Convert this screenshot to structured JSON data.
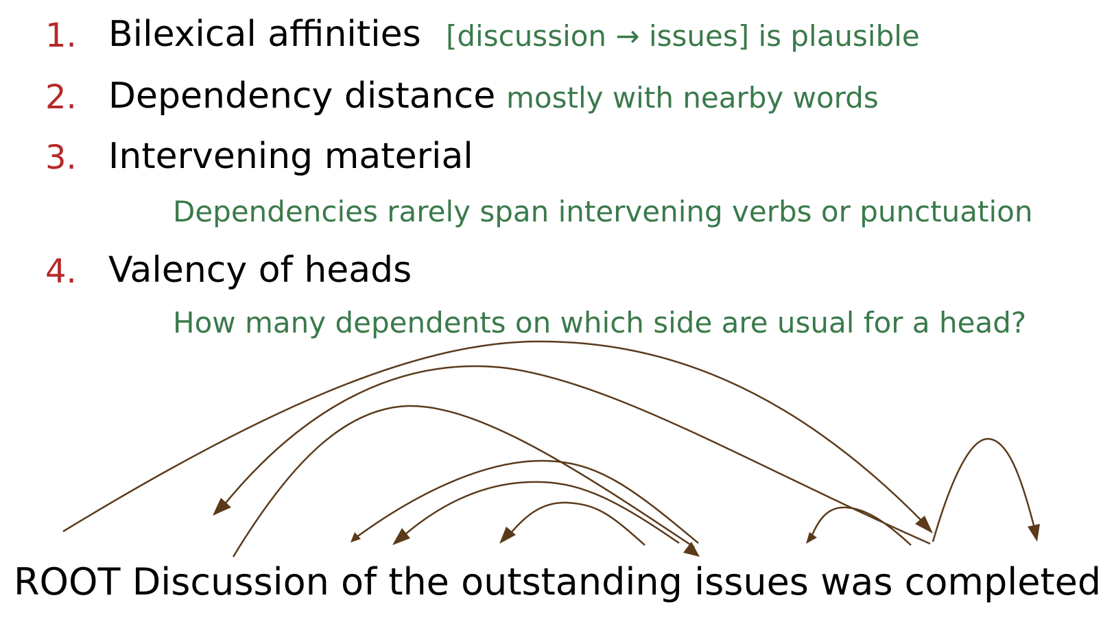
{
  "items": [
    {
      "number": "1.",
      "title": "Bilexical affinities",
      "note": "[discussion → issues] is plausible"
    },
    {
      "number": "2.",
      "title": "Dependency distance",
      "note": "mostly with nearby words"
    },
    {
      "number": "3.",
      "title": "Intervening material",
      "note": "Dependencies rarely span intervening verbs or punctuation"
    },
    {
      "number": "4.",
      "title": "Valency of heads",
      "note": "How many dependents on which side are usual for a head?"
    }
  ],
  "sentence": {
    "words": [
      "ROOT",
      "Discussion",
      "of",
      "the",
      "outstanding",
      "issues",
      "was",
      "completed",
      "."
    ]
  },
  "colors": {
    "number": "#b5292b",
    "note": "#3a7a4a",
    "arc": "#5a3a1a",
    "text": "#000000"
  }
}
